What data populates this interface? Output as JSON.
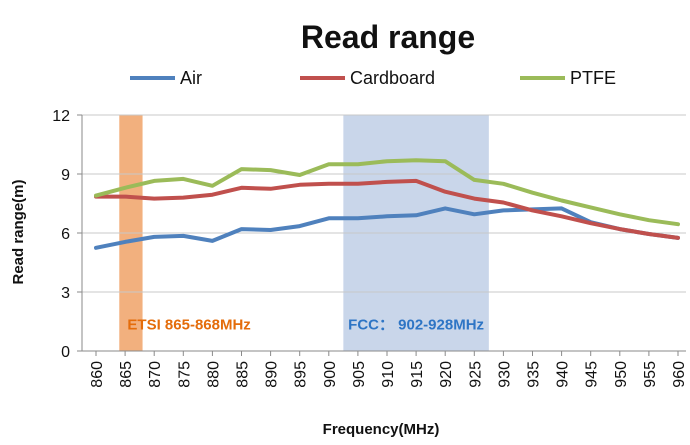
{
  "chart_data": {
    "type": "line",
    "title": "Read range",
    "xlabel": "Frequency(MHz)",
    "ylabel": "Read range(m)",
    "x": [
      860,
      865,
      870,
      875,
      880,
      885,
      890,
      895,
      900,
      905,
      910,
      915,
      920,
      925,
      930,
      935,
      940,
      945,
      950,
      955,
      960
    ],
    "xtick_labels": [
      "860",
      "865",
      "870",
      "875",
      "880",
      "885",
      "890",
      "895",
      "900",
      "905",
      "910",
      "915",
      "920",
      "925",
      "930",
      "935",
      "940",
      "945",
      "950",
      "955",
      "960"
    ],
    "yticks": [
      0,
      3,
      6,
      9,
      12
    ],
    "ytick_labels": [
      "0",
      "3",
      "6",
      "9",
      "12"
    ],
    "ylim": [
      0,
      12
    ],
    "xlim": [
      860,
      960
    ],
    "grid": "horizontal",
    "legend_position": "top-center",
    "series": [
      {
        "name": "Air",
        "color": "#4F81BD",
        "values": [
          5.25,
          5.55,
          5.8,
          5.85,
          5.6,
          6.2,
          6.15,
          6.35,
          6.75,
          6.75,
          6.85,
          6.9,
          7.25,
          6.95,
          7.15,
          7.2,
          7.25,
          6.55,
          6.2,
          5.95,
          5.75
        ]
      },
      {
        "name": "Cardboard",
        "color": "#C0504D",
        "values": [
          7.85,
          7.85,
          7.75,
          7.8,
          7.95,
          8.3,
          8.25,
          8.45,
          8.5,
          8.5,
          8.6,
          8.65,
          8.1,
          7.75,
          7.55,
          7.15,
          6.85,
          6.5,
          6.2,
          5.95,
          5.75
        ]
      },
      {
        "name": "PTFE",
        "color": "#9BBB59",
        "values": [
          7.9,
          8.3,
          8.65,
          8.75,
          8.4,
          9.25,
          9.2,
          8.95,
          9.5,
          9.5,
          9.65,
          9.7,
          9.65,
          8.7,
          8.5,
          8.05,
          7.65,
          7.3,
          6.95,
          6.65,
          6.45
        ]
      }
    ],
    "bands": [
      {
        "label": "ETSI 865-868MHz",
        "from": 864,
        "to": 868,
        "color": "#F2B07E",
        "text_color": "#E46C0A",
        "label_x": 876,
        "label_y": 1.35
      },
      {
        "label": "FCC： 902-928MHz",
        "from": 902.5,
        "to": 927.5,
        "color": "#C9D6EA",
        "text_color": "#2E75C5",
        "label_x": 915,
        "label_y": 1.35
      }
    ]
  }
}
